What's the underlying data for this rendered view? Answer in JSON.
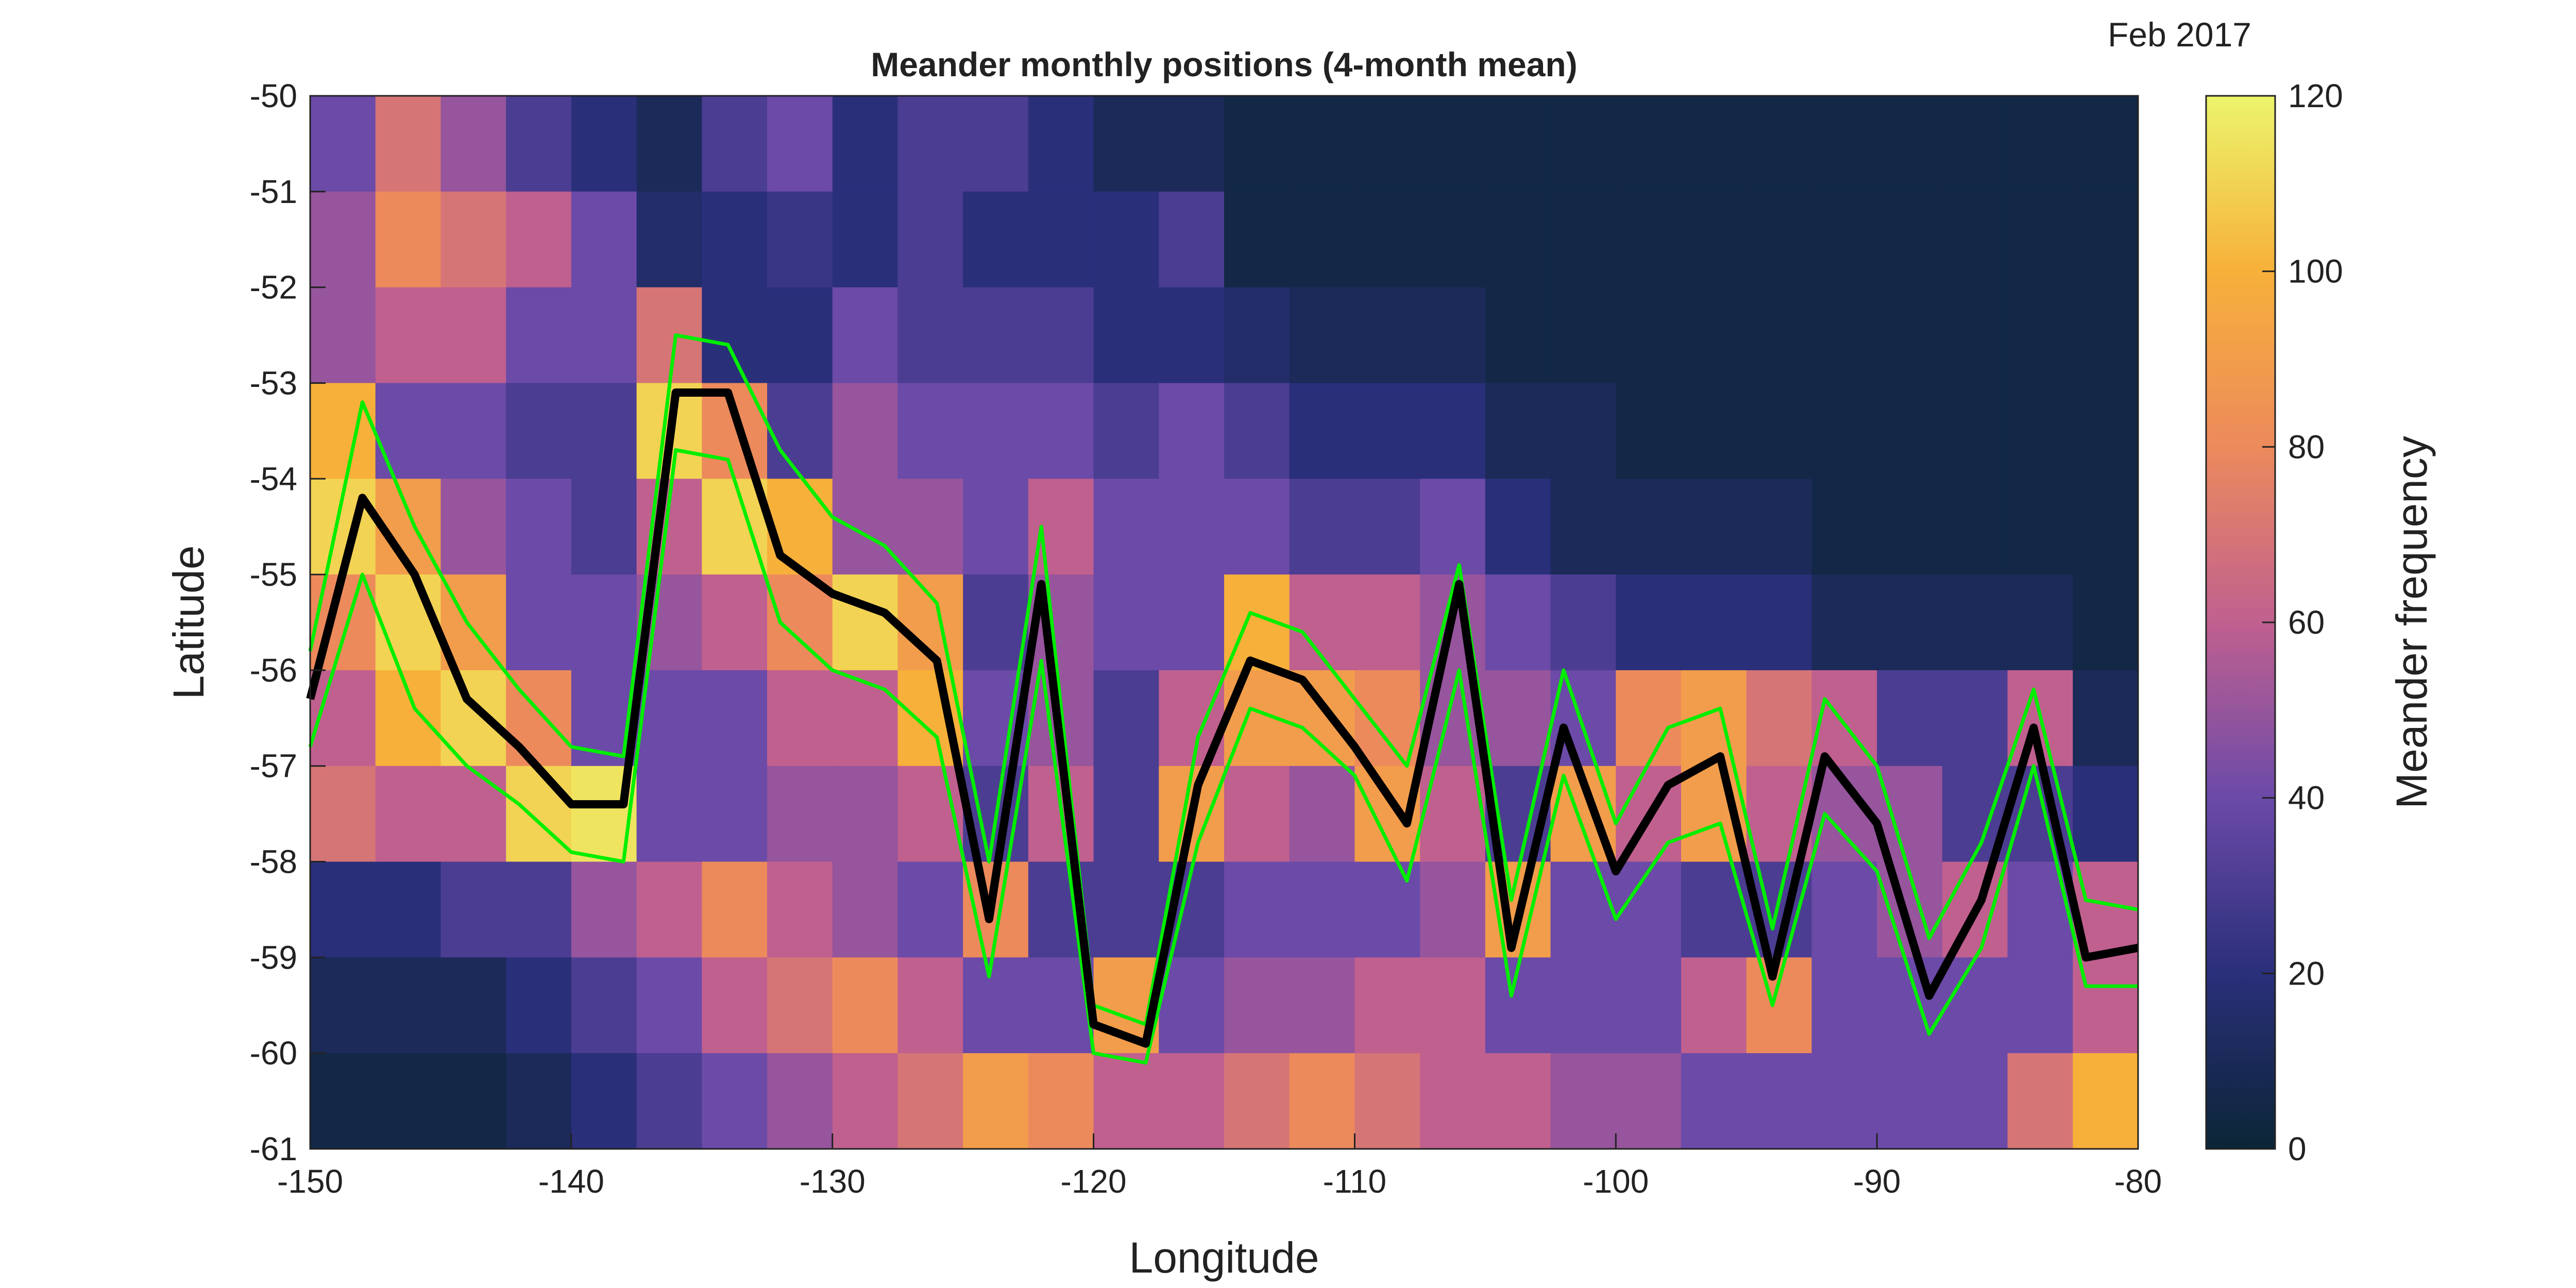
{
  "chart_data": {
    "type": "heatmap",
    "title": "Meander monthly positions (4-month mean)",
    "annotation": "Feb 2017",
    "xlabel": "Longitude",
    "ylabel": "Latitude",
    "colorbar_label": "Meander frequency",
    "xlim": [
      -150,
      -80
    ],
    "ylim": [
      -61,
      -50
    ],
    "xticks": [
      -150,
      -140,
      -130,
      -120,
      -110,
      -100,
      -90,
      -80
    ],
    "yticks": [
      -50,
      -51,
      -52,
      -53,
      -54,
      -55,
      -56,
      -57,
      -58,
      -59,
      -60,
      -61
    ],
    "clim": [
      0,
      120
    ],
    "cticks": [
      0,
      20,
      40,
      60,
      80,
      100,
      120
    ],
    "colormap": [
      "#0b2536",
      "#2a2f7a",
      "#6b4aa8",
      "#c0608f",
      "#ec8a5c",
      "#f7b03a",
      "#ecf56c"
    ],
    "values": [
      [
        40,
        70,
        50,
        30,
        20,
        10,
        30,
        40,
        20,
        30,
        30,
        20,
        10,
        10,
        5,
        5,
        5,
        5,
        5,
        5,
        5,
        5,
        5,
        5,
        5,
        5,
        5,
        5
      ],
      [
        50,
        80,
        70,
        60,
        40,
        15,
        20,
        25,
        20,
        30,
        20,
        20,
        20,
        30,
        5,
        5,
        5,
        5,
        5,
        5,
        5,
        5,
        5,
        5,
        5,
        5,
        5,
        5
      ],
      [
        50,
        60,
        60,
        40,
        40,
        70,
        20,
        20,
        40,
        30,
        30,
        30,
        20,
        20,
        15,
        10,
        10,
        10,
        5,
        5,
        5,
        5,
        5,
        5,
        5,
        5,
        5,
        5
      ],
      [
        100,
        40,
        40,
        30,
        30,
        110,
        80,
        30,
        50,
        40,
        40,
        40,
        30,
        40,
        30,
        20,
        20,
        20,
        10,
        10,
        5,
        5,
        5,
        5,
        5,
        5,
        5,
        5
      ],
      [
        110,
        90,
        50,
        40,
        30,
        60,
        110,
        100,
        50,
        50,
        40,
        60,
        40,
        40,
        40,
        30,
        30,
        40,
        20,
        10,
        10,
        10,
        10,
        5,
        5,
        5,
        5,
        5
      ],
      [
        80,
        110,
        90,
        40,
        40,
        50,
        60,
        80,
        110,
        90,
        30,
        50,
        40,
        40,
        100,
        60,
        60,
        50,
        40,
        30,
        20,
        20,
        20,
        10,
        10,
        10,
        10,
        5
      ],
      [
        60,
        100,
        110,
        80,
        40,
        40,
        40,
        60,
        60,
        100,
        40,
        50,
        30,
        60,
        90,
        90,
        80,
        50,
        50,
        40,
        80,
        90,
        70,
        60,
        30,
        30,
        60,
        10
      ],
      [
        70,
        60,
        60,
        110,
        115,
        40,
        40,
        50,
        50,
        60,
        30,
        60,
        30,
        90,
        60,
        50,
        90,
        60,
        30,
        90,
        60,
        90,
        60,
        50,
        50,
        30,
        30,
        20
      ],
      [
        20,
        20,
        30,
        30,
        50,
        60,
        80,
        60,
        50,
        40,
        80,
        30,
        30,
        30,
        40,
        40,
        40,
        50,
        90,
        40,
        40,
        30,
        30,
        40,
        50,
        60,
        40,
        60
      ],
      [
        10,
        10,
        10,
        20,
        30,
        40,
        60,
        70,
        80,
        60,
        40,
        40,
        90,
        40,
        50,
        50,
        60,
        60,
        40,
        40,
        40,
        60,
        80,
        40,
        40,
        40,
        40,
        60
      ],
      [
        5,
        5,
        5,
        10,
        20,
        30,
        40,
        50,
        60,
        70,
        90,
        80,
        60,
        60,
        70,
        80,
        70,
        60,
        60,
        50,
        50,
        40,
        40,
        40,
        40,
        40,
        70,
        100
      ]
    ],
    "x": [
      -150,
      -148,
      -146,
      -144,
      -142,
      -140,
      -138,
      -136,
      -134,
      -132,
      -130,
      -128,
      -126,
      -124,
      -122,
      -120,
      -118,
      -116,
      -114,
      -112,
      -110,
      -108,
      -106,
      -104,
      -102,
      -100,
      -98,
      -96,
      -94,
      -92,
      -90,
      -88,
      -86,
      -84,
      -82,
      -80
    ],
    "series": [
      {
        "color": "#00ee00",
        "values": [
          -55.8,
          -53.2,
          -54.5,
          -55.5,
          -56.2,
          -56.8,
          -56.9,
          -52.5,
          -52.6,
          -53.7,
          -54.4,
          -54.7,
          -55.3,
          -58.0,
          -54.5,
          -59.5,
          -59.7,
          -56.7,
          -55.4,
          -55.6,
          -56.3,
          -57.0,
          -54.9,
          -58.4,
          -56.0,
          -57.6,
          -56.6,
          -56.4,
          -58.7,
          -56.3,
          -57.0,
          -58.8,
          -57.8,
          -56.2,
          -58.4,
          -58.5
        ]
      },
      {
        "color": "#00ee00",
        "values": [
          -56.8,
          -55.0,
          -56.4,
          -57.0,
          -57.4,
          -57.9,
          -58.0,
          -53.7,
          -53.8,
          -55.5,
          -56.0,
          -56.2,
          -56.7,
          -59.2,
          -55.9,
          -60.0,
          -60.1,
          -57.8,
          -56.4,
          -56.6,
          -57.1,
          -58.2,
          -56.0,
          -59.4,
          -57.1,
          -58.6,
          -57.8,
          -57.6,
          -59.5,
          -57.5,
          -58.1,
          -59.8,
          -58.9,
          -57.0,
          -59.3,
          -59.3
        ]
      },
      {
        "color": "#000000",
        "values": [
          -56.3,
          -54.2,
          -55.0,
          -56.3,
          -56.8,
          -57.4,
          -57.4,
          -53.1,
          -53.1,
          -54.8,
          -55.2,
          -55.4,
          -55.9,
          -58.6,
          -55.1,
          -59.7,
          -59.9,
          -57.2,
          -55.9,
          -56.1,
          -56.8,
          -57.6,
          -55.1,
          -58.9,
          -56.6,
          -58.1,
          -57.2,
          -56.9,
          -59.2,
          -56.9,
          -57.6,
          -59.4,
          -58.4,
          -56.6,
          -59.0,
          -58.9
        ]
      }
    ]
  }
}
